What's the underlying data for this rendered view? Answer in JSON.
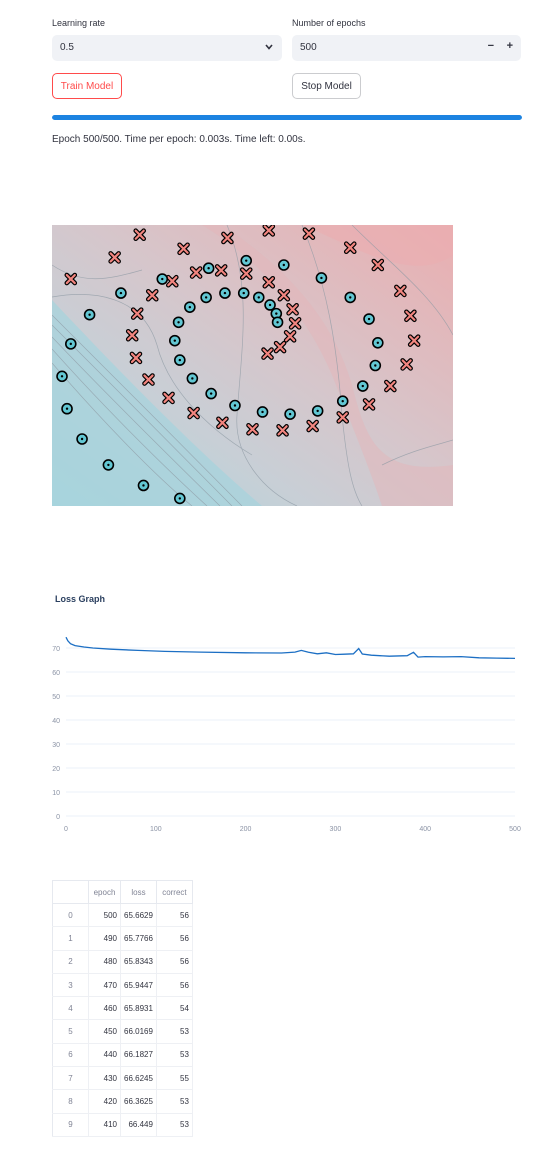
{
  "controls": {
    "learning_rate_label": "Learning rate",
    "learning_rate_value": "0.5",
    "epochs_label": "Number of epochs",
    "epochs_value": "500",
    "minus": "−",
    "plus": "+",
    "train_button": "Train Model",
    "stop_button": "Stop Model"
  },
  "progress": {
    "fraction": 1.0,
    "status": "Epoch 500/500. Time per epoch: 0.003s. Time left: 0.00s."
  },
  "colors": {
    "accent": "#ff4b4b",
    "progress": "#1c83e1",
    "class_a": "#f2857f",
    "class_b": "#62c7d3",
    "loss_line": "#1c6fc4"
  },
  "loss_graph": {
    "title": "Loss Graph"
  },
  "chart_data": [
    {
      "type": "scatter",
      "title": "",
      "description_markers": [
        "cross",
        "circle"
      ],
      "series": [
        {
          "marker": "cross",
          "points": [
            [
              -0.9,
              0.96
            ],
            [
              -0.55,
              0.83
            ],
            [
              -0.2,
              0.93
            ],
            [
              0.13,
              1.0
            ],
            [
              0.45,
              0.97
            ],
            [
              0.78,
              0.84
            ],
            [
              1.0,
              0.68
            ],
            [
              1.18,
              0.44
            ],
            [
              1.26,
              0.21
            ],
            [
              1.29,
              -0.02
            ],
            [
              1.23,
              -0.24
            ],
            [
              1.1,
              -0.44
            ],
            [
              0.93,
              -0.61
            ],
            [
              0.72,
              -0.73
            ],
            [
              0.48,
              -0.81
            ],
            [
              0.24,
              -0.85
            ],
            [
              0.0,
              -0.84
            ],
            [
              -0.24,
              -0.78
            ],
            [
              -0.47,
              -0.69
            ],
            [
              -0.67,
              -0.55
            ],
            [
              -0.83,
              -0.38
            ],
            [
              -0.93,
              -0.18
            ],
            [
              -0.96,
              0.03
            ],
            [
              -0.92,
              0.23
            ],
            [
              -0.8,
              0.4
            ],
            [
              -0.64,
              0.53
            ],
            [
              -0.45,
              0.61
            ],
            [
              -0.25,
              0.63
            ],
            [
              -0.05,
              0.6
            ],
            [
              0.13,
              0.52
            ],
            [
              0.25,
              0.4
            ],
            [
              0.32,
              0.27
            ],
            [
              0.34,
              0.14
            ],
            [
              0.3,
              0.02
            ],
            [
              0.22,
              -0.08
            ],
            [
              0.12,
              -0.14
            ],
            [
              -1.45,
              0.55
            ],
            [
              -1.1,
              0.75
            ]
          ]
        },
        {
          "marker": "circle",
          "points": [
            [
              -0.35,
              0.65
            ],
            [
              -0.05,
              0.72
            ],
            [
              0.25,
              0.68
            ],
            [
              0.55,
              0.56
            ],
            [
              0.78,
              0.38
            ],
            [
              0.93,
              0.18
            ],
            [
              1.0,
              -0.04
            ],
            [
              0.98,
              -0.25
            ],
            [
              0.88,
              -0.44
            ],
            [
              0.72,
              -0.58
            ],
            [
              0.52,
              -0.67
            ],
            [
              0.3,
              -0.7
            ],
            [
              0.08,
              -0.68
            ],
            [
              -0.14,
              -0.62
            ],
            [
              -0.33,
              -0.51
            ],
            [
              -0.48,
              -0.37
            ],
            [
              -0.58,
              -0.2
            ],
            [
              -0.62,
              -0.02
            ],
            [
              -0.59,
              0.15
            ],
            [
              -0.5,
              0.29
            ],
            [
              -0.37,
              0.38
            ],
            [
              -0.22,
              0.42
            ],
            [
              -0.07,
              0.42
            ],
            [
              0.05,
              0.38
            ],
            [
              0.14,
              0.31
            ],
            [
              0.19,
              0.23
            ],
            [
              0.2,
              0.15
            ],
            [
              -0.72,
              0.55
            ],
            [
              -1.05,
              0.42
            ],
            [
              -1.3,
              0.22
            ],
            [
              -1.45,
              -0.05
            ],
            [
              -1.52,
              -0.35
            ],
            [
              -1.48,
              -0.65
            ],
            [
              -1.36,
              -0.93
            ],
            [
              -1.15,
              -1.17
            ],
            [
              -0.87,
              -1.36
            ],
            [
              -0.58,
              -1.48
            ]
          ]
        }
      ],
      "xlim": [
        -1.6,
        1.6
      ],
      "ylim": [
        -1.55,
        1.05
      ],
      "background": "decision-regions"
    },
    {
      "type": "line",
      "title": "Loss Graph",
      "xlabel": "",
      "ylabel": "",
      "x_ticks": [
        "0",
        "100",
        "200",
        "300",
        "400",
        "500"
      ],
      "y_ticks": [
        "0",
        "10",
        "20",
        "30",
        "40",
        "50",
        "60",
        "70"
      ],
      "xlim": [
        0,
        500
      ],
      "ylim": [
        0,
        75
      ],
      "series": [
        {
          "x": [
            0,
            2,
            5,
            10,
            20,
            30,
            50,
            80,
            110,
            150,
            200,
            240,
            255,
            262,
            270,
            280,
            290,
            300,
            310,
            320,
            326,
            330,
            340,
            360,
            380,
            387,
            392,
            400,
            420,
            440,
            460,
            480,
            500
          ],
          "y": [
            74.5,
            73.0,
            71.8,
            71.0,
            70.4,
            70.0,
            69.5,
            69.0,
            68.6,
            68.3,
            68.0,
            67.9,
            68.3,
            69.0,
            68.2,
            67.6,
            68.0,
            67.3,
            67.4,
            67.6,
            69.8,
            67.5,
            67.0,
            66.6,
            66.8,
            68.2,
            66.2,
            66.4,
            66.3,
            66.4,
            65.9,
            65.8,
            65.66
          ]
        }
      ]
    },
    {
      "type": "table",
      "columns": [
        "",
        "epoch",
        "loss",
        "correct"
      ],
      "rows": [
        [
          "0",
          "500",
          "65.6629",
          "56"
        ],
        [
          "1",
          "490",
          "65.7766",
          "56"
        ],
        [
          "2",
          "480",
          "65.8343",
          "56"
        ],
        [
          "3",
          "470",
          "65.9447",
          "56"
        ],
        [
          "4",
          "460",
          "65.8931",
          "54"
        ],
        [
          "5",
          "450",
          "66.0169",
          "53"
        ],
        [
          "6",
          "440",
          "66.1827",
          "53"
        ],
        [
          "7",
          "430",
          "66.6245",
          "55"
        ],
        [
          "8",
          "420",
          "66.3625",
          "53"
        ],
        [
          "9",
          "410",
          "66.449",
          "53"
        ]
      ]
    }
  ]
}
